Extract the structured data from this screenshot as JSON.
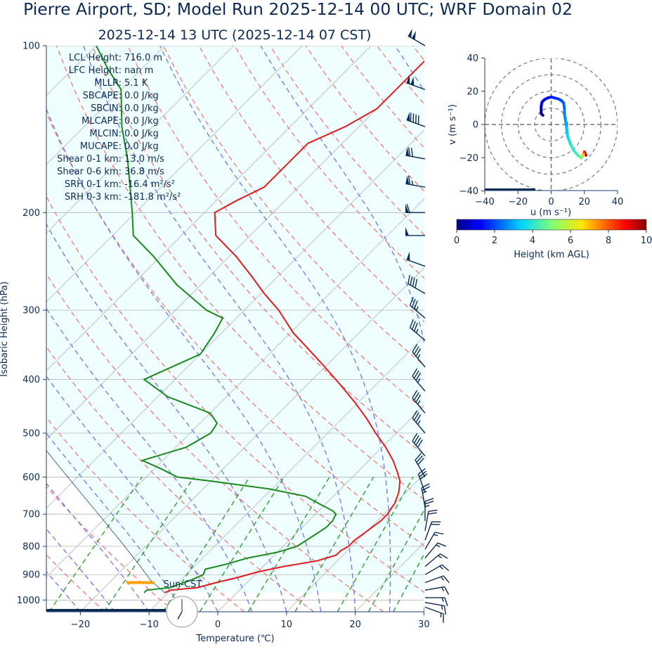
{
  "figure": {
    "title": "Pierre Airport, SD; Model Run 2025-12-14 00 UTC; WRF Domain 02",
    "subtitle": "2025-12-14 13 UTC  (2025-12-14 07 CST)",
    "colors": {
      "title": "#0b2a55",
      "temperature": "#e41a1c",
      "dewpoint": "#1a8a1a",
      "dry_adiabat": "#f08080",
      "moist_adiabat": "#7b7bef",
      "mixing_ratio": "#2ca02c",
      "isotherm": "#b4b4b4",
      "shade": "#efffff",
      "barb": "#0b2a55",
      "parcel_marker": "#ff9f00"
    }
  },
  "indices": [
    {
      "label": "LCL Height:",
      "value": "716.0 m"
    },
    {
      "label": "LFC Height:",
      "value": "nan m"
    },
    {
      "label": "MLLR:",
      "value": "5.1 K"
    },
    {
      "label": "SBCAPE:",
      "value": "0.0 J/kg"
    },
    {
      "label": "SBCIN:",
      "value": "0.0 J/kg"
    },
    {
      "label": "MLCAPE:",
      "value": "0.0 J/kg"
    },
    {
      "label": "MLCIN:",
      "value": "0.0 J/kg"
    },
    {
      "label": "MUCAPE:",
      "value": "0.0 J/kg"
    },
    {
      "label": "Shear 0-1 km:",
      "value": "13.0 m/s"
    },
    {
      "label": "Shear 0-6 km:",
      "value": "36.8 m/s"
    },
    {
      "label": "SRH 0-1 km:",
      "value": "-16.4 m²/s²"
    },
    {
      "label": "SRH 0-3 km:",
      "value": "-181.8 m²/s²"
    }
  ],
  "clock": {
    "label": "Sun-CST",
    "hour": 7,
    "minute": 0
  },
  "chart_data": [
    {
      "type": "line",
      "name": "skew-t",
      "xlabel": "Temperature (℃)",
      "ylabel": "Isobaric Height (hPa)",
      "xlim": [
        -25,
        30
      ],
      "ylim": [
        1050,
        100
      ],
      "y_scale": "log",
      "skew": "45 degrees",
      "x_ticks": [
        -20,
        -10,
        0,
        10,
        20,
        30
      ],
      "x_tick_labels": [
        "−20",
        "−10",
        "0",
        "10",
        "20",
        "30"
      ],
      "y_ticks": [
        100,
        200,
        300,
        400,
        500,
        600,
        700,
        800,
        900,
        1000
      ],
      "y_tick_labels": [
        "100",
        "200",
        "300",
        "400",
        "500",
        "600",
        "700",
        "800",
        "900",
        "1000"
      ],
      "grid": true,
      "shading": "cyan above parcel",
      "series": [
        {
          "pressure": [
            970,
            960,
            950,
            930,
            910,
            890,
            870,
            850,
            830,
            815,
            800,
            780,
            750,
            720,
            700,
            670,
            640,
            610,
            590,
            560,
            530,
            500,
            470,
            440,
            410,
            380,
            350,
            330,
            300,
            280,
            260,
            240,
            220,
            200,
            190,
            180,
            170,
            160,
            150,
            140,
            130,
            120,
            110,
            100
          ],
          "values": [
            -10.5,
            -10.0,
            -6.5,
            -4.5,
            -2.0,
            0.0,
            3.0,
            7.0,
            9.0,
            9.0,
            9.5,
            9.5,
            10.0,
            10.5,
            10.5,
            10.0,
            9.0,
            7.5,
            6.0,
            3.5,
            0.5,
            -3.0,
            -6.5,
            -10.5,
            -15.0,
            -20.0,
            -25.5,
            -29.5,
            -35.0,
            -39.5,
            -44.0,
            -49.0,
            -55.0,
            -58.5,
            -57.0,
            -55.0,
            -55.0,
            -55.0,
            -55.0,
            -52.0,
            -50.0,
            -50.0,
            -50.0,
            -50.0
          ]
        },
        {
          "pressure": [
            970,
            960,
            950,
            935,
            920,
            900,
            880,
            860,
            840,
            820,
            800,
            780,
            760,
            740,
            720,
            700,
            690,
            670,
            650,
            630,
            610,
            600,
            580,
            560,
            530,
            500,
            480,
            460,
            430,
            400,
            360,
            330,
            310,
            300,
            270,
            240,
            220,
            200,
            180,
            160,
            140,
            120,
            110,
            100
          ],
          "values": [
            -13.5,
            -13.5,
            -10.5,
            -9.5,
            -8.5,
            -7.5,
            -8.0,
            -5.5,
            -3.5,
            0.0,
            2.0,
            2.5,
            3.0,
            3.5,
            3.5,
            3.0,
            2.0,
            -1.0,
            -4.0,
            -10.5,
            -20.0,
            -25.5,
            -29.0,
            -33.0,
            -28.5,
            -27.0,
            -27.5,
            -30.0,
            -38.5,
            -44.5,
            -40.0,
            -41.0,
            -42.0,
            -45.5,
            -53.5,
            -61.0,
            -67.0,
            -70.5,
            -74.5,
            -79.0,
            -84.5,
            -90.0,
            -95.0,
            -100.0
          ]
        }
      ]
    },
    {
      "type": "line",
      "name": "hodograph",
      "xlabel": "u (m s⁻¹)",
      "ylabel": "v (m s⁻¹)",
      "xlim": [
        -40,
        40
      ],
      "ylim": [
        -40,
        40
      ],
      "x_ticks": [
        -40,
        -20,
        0,
        20,
        40
      ],
      "x_tick_labels": [
        "−40",
        "−20",
        "0",
        "20",
        "40"
      ],
      "y_ticks": [
        40,
        20,
        0,
        -20,
        -40
      ],
      "y_tick_labels": [
        "40",
        "20",
        "0",
        "−20",
        "−40"
      ],
      "rings": [
        10,
        20,
        30,
        40
      ],
      "colorbar": {
        "label": "Height (km AGL)",
        "range": [
          0,
          10
        ],
        "ticks": [
          "0",
          "2",
          "4",
          "6",
          "8",
          "10"
        ],
        "colormap": "jet"
      },
      "points": {
        "u": [
          21.0,
          20.0,
          19.5,
          18.5,
          18.0,
          16.0,
          13.5,
          11.5,
          10.0,
          9.5,
          9.0,
          8.5,
          8.0,
          8.0,
          7.5,
          6.0,
          4.0,
          2.0,
          0.0,
          -2.0,
          -4.0,
          -5.5,
          -6.0,
          -6.0,
          -6.0,
          -5.0
        ],
        "v": [
          -18.5,
          -16.5,
          -18.0,
          -19.5,
          -20.0,
          -18.5,
          -15.5,
          -11.5,
          -7.5,
          -4.0,
          0.0,
          3.0,
          6.5,
          9.5,
          13.0,
          14.5,
          15.5,
          16.0,
          16.5,
          16.0,
          15.0,
          13.5,
          11.0,
          8.5,
          6.5,
          5.5
        ],
        "z_km": [
          10.0,
          9.0,
          8.0,
          6.0,
          4.8,
          4.5,
          4.2,
          3.9,
          3.6,
          3.3,
          3.0,
          2.8,
          2.6,
          2.4,
          2.2,
          2.0,
          1.8,
          1.6,
          1.4,
          1.2,
          1.0,
          0.8,
          0.6,
          0.4,
          0.2,
          0.0
        ]
      }
    }
  ],
  "wind_barbs": {
    "pressure": [
      100,
      120,
      140,
      160,
      180,
      200,
      220,
      250,
      280,
      310,
      340,
      380,
      420,
      460,
      500,
      550,
      600,
      640,
      680,
      720,
      750,
      780,
      810,
      840,
      870,
      900,
      930,
      960,
      990,
      1010,
      1030
    ],
    "speed_kt": [
      100,
      100,
      90,
      70,
      65,
      60,
      50,
      50,
      40,
      35,
      35,
      35,
      35,
      35,
      35,
      40,
      30,
      30,
      25,
      25,
      20,
      20,
      15,
      15,
      15,
      15,
      15,
      15,
      15,
      15,
      15
    ],
    "direction_deg": [
      300,
      290,
      290,
      280,
      280,
      270,
      270,
      290,
      300,
      310,
      310,
      320,
      320,
      320,
      320,
      320,
      330,
      340,
      350,
      0,
      10,
      20,
      30,
      40,
      50,
      60,
      70,
      80,
      90,
      100,
      110
    ]
  }
}
